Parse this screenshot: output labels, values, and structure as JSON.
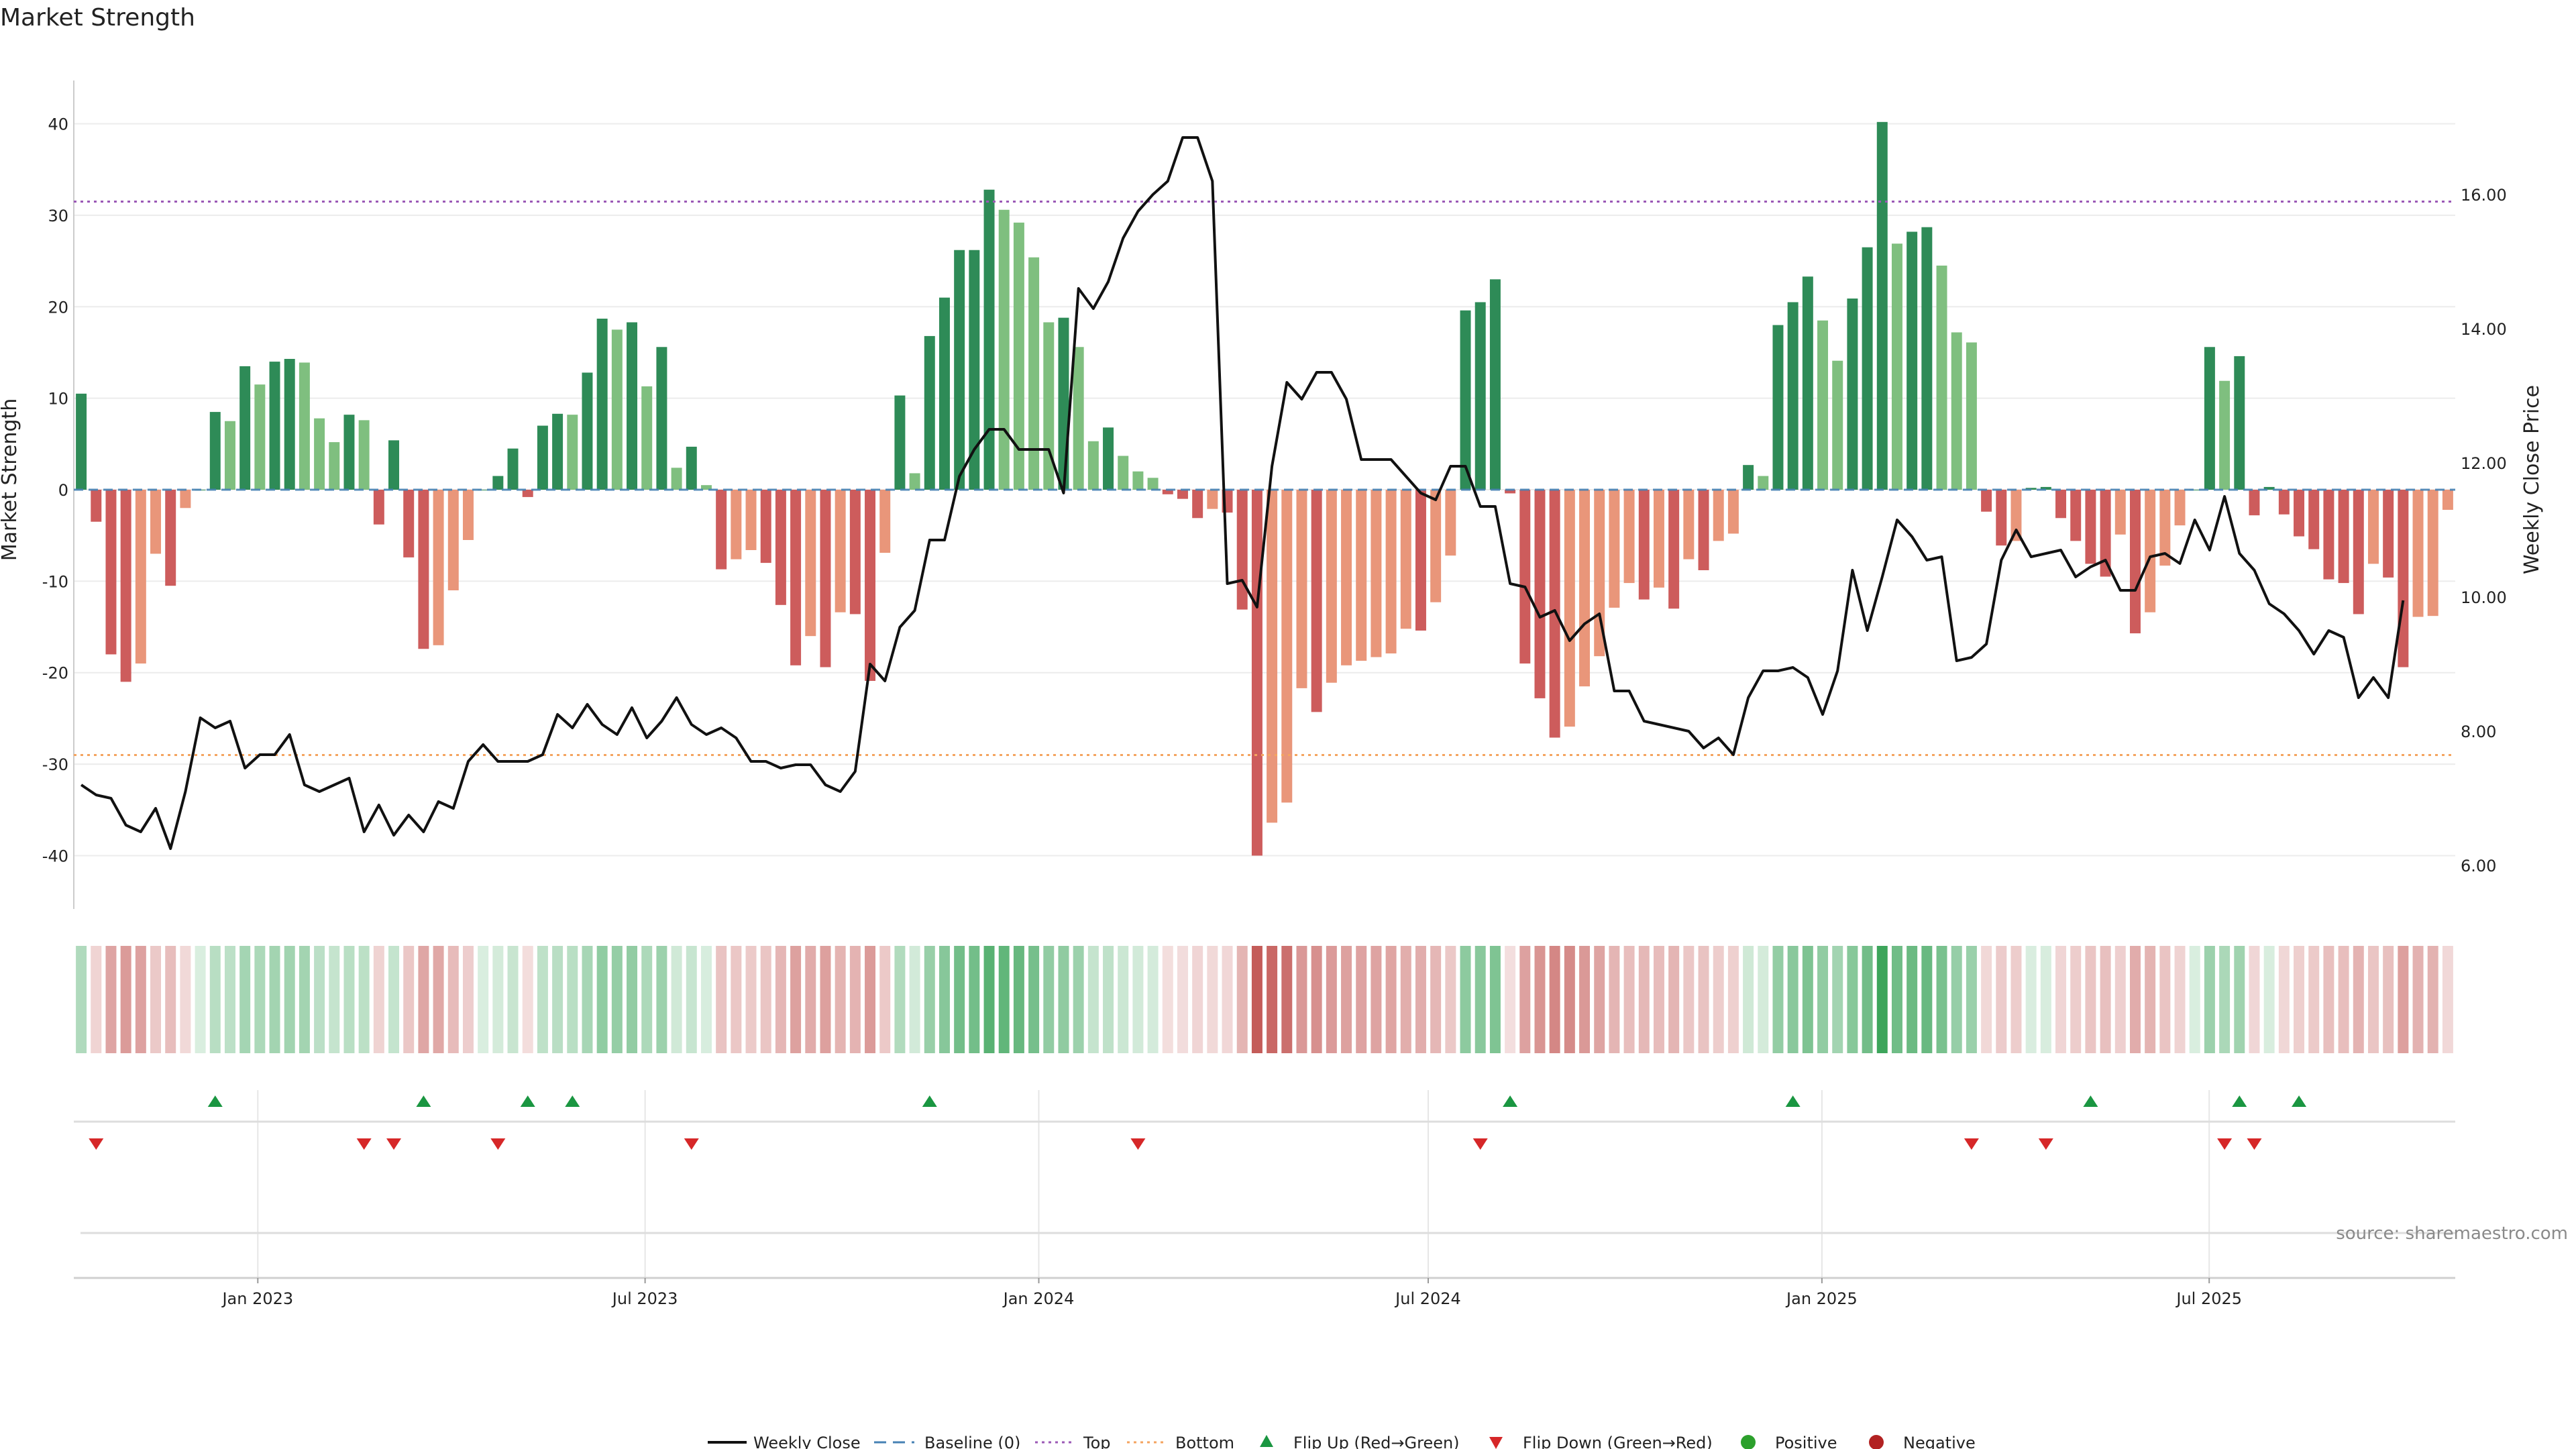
{
  "chart_data": {
    "type": "bar",
    "title": "Market Strength",
    "ylabel": "Market Strength",
    "y2label": "Weekly Close Price",
    "ylim": [
      -44,
      44
    ],
    "y2lim": [
      5.6,
      17.6
    ],
    "yticks": [
      40,
      30,
      20,
      10,
      0,
      -10,
      -20,
      -30,
      -40
    ],
    "y2ticks": [
      "16.00",
      "14.00",
      "12.00",
      "10.00",
      "8.00",
      "6.00"
    ],
    "y2tick_values": [
      16,
      14,
      12,
      10,
      8,
      6
    ],
    "top_level": 31.5,
    "bottom_level": -29,
    "x_start": "2022-10-07",
    "x_end": "2025-10-24",
    "xticks": [
      {
        "date": "2023-01-01",
        "label": "Jan 2023"
      },
      {
        "date": "2023-07-01",
        "label": "Jul 2023"
      },
      {
        "date": "2024-01-01",
        "label": "Jan 2024"
      },
      {
        "date": "2024-07-01",
        "label": "Jul 2024"
      },
      {
        "date": "2025-01-01",
        "label": "Jan 2025"
      },
      {
        "date": "2025-07-01",
        "label": "Jul 2025"
      }
    ],
    "strength": [
      10.5,
      -3.5,
      -18,
      -21,
      -19,
      -7,
      -10.5,
      -2,
      0,
      8.5,
      7.5,
      13.5,
      11.5,
      14,
      14.3,
      13.9,
      7.8,
      5.2,
      8.2,
      7.6,
      -3.8,
      5.4,
      -7.4,
      -17.4,
      -17,
      -11,
      -5.5,
      0,
      1.5,
      4.5,
      -0.8,
      7,
      8.3,
      8.2,
      12.8,
      18.7,
      17.5,
      18.3,
      11.3,
      15.6,
      2.4,
      4.7,
      0.5,
      -8.7,
      -7.6,
      -6.6,
      -8,
      -12.6,
      -19.2,
      -16,
      -19.4,
      -13.4,
      -13.6,
      -20.9,
      -6.9,
      10.3,
      1.8,
      16.8,
      21,
      26.2,
      26.2,
      32.8,
      30.6,
      29.2,
      25.4,
      18.3,
      18.8,
      15.6,
      5.3,
      6.8,
      3.7,
      2,
      1.3,
      -0.5,
      -1,
      -3.1,
      -2.1,
      -2.5,
      -13.1,
      -40,
      -36.4,
      -34.2,
      -21.7,
      -24.3,
      -21.1,
      -19.2,
      -18.7,
      -18.3,
      -17.9,
      -15.2,
      -15.4,
      -12.3,
      -7.2,
      19.6,
      20.5,
      23,
      -0.4,
      -19,
      -22.8,
      -27.1,
      -25.9,
      -21.5,
      -18.2,
      -12.9,
      -10.2,
      -12,
      -10.7,
      -13,
      -7.6,
      -8.8,
      -5.6,
      -4.8,
      2.7,
      1.5,
      18,
      20.5,
      23.3,
      18.5,
      14.1,
      20.9,
      26.5,
      40.2,
      26.9,
      28.2,
      28.7,
      24.5,
      17.2,
      16.1,
      -2.4,
      -6.1,
      -5.6,
      0.2,
      0.3,
      -3.1,
      -5.6,
      -8.1,
      -9.5,
      -4.9,
      -15.7,
      -13.4,
      -8.3,
      -3.9,
      0,
      15.6,
      11.9,
      14.6,
      -2.8,
      0.3,
      -2.7,
      -5.1,
      -6.5,
      -9.8,
      -10.2,
      -13.6,
      -8.1,
      -9.6,
      -19.4,
      -13.9,
      -13.8,
      -2.2
    ],
    "close": [
      7.2,
      7.05,
      7.0,
      6.6,
      6.5,
      6.85,
      6.25,
      7.1,
      8.2,
      8.05,
      8.15,
      7.45,
      7.65,
      7.65,
      7.95,
      7.2,
      7.1,
      7.2,
      7.3,
      6.5,
      6.9,
      6.45,
      6.75,
      6.5,
      6.95,
      6.85,
      7.55,
      7.8,
      7.55,
      7.55,
      7.55,
      7.65,
      8.25,
      8.05,
      8.4,
      8.1,
      7.95,
      8.35,
      7.9,
      8.15,
      8.5,
      8.1,
      7.95,
      8.05,
      7.9,
      7.55,
      7.55,
      7.45,
      7.5,
      7.5,
      7.2,
      7.1,
      7.4,
      9.0,
      8.75,
      9.55,
      9.8,
      10.85,
      10.85,
      11.8,
      12.2,
      12.5,
      12.5,
      12.2,
      12.2,
      12.2,
      11.55,
      14.6,
      14.3,
      14.7,
      15.35,
      15.75,
      16.0,
      16.2,
      16.85,
      16.85,
      16.2,
      10.2,
      10.25,
      9.85,
      11.95,
      13.2,
      12.95,
      13.35,
      13.35,
      12.95,
      12.05,
      12.05,
      12.05,
      11.8,
      11.55,
      11.45,
      11.95,
      11.95,
      11.35,
      11.35,
      10.2,
      10.15,
      9.7,
      9.8,
      9.35,
      9.6,
      9.75,
      8.6,
      8.6,
      8.15,
      8.1,
      8.05,
      8.0,
      7.75,
      7.9,
      7.65,
      8.5,
      8.9,
      8.9,
      8.95,
      8.8,
      8.25,
      8.9,
      10.4,
      9.5,
      10.3,
      11.15,
      10.9,
      10.55,
      10.6,
      9.05,
      9.1,
      9.3,
      10.55,
      11.0,
      10.6,
      10.65,
      10.7,
      10.3,
      10.45,
      10.55,
      10.1,
      10.1,
      10.6,
      10.65,
      10.5,
      11.15,
      10.7,
      11.5,
      10.65,
      10.4,
      9.9,
      9.75,
      9.5,
      9.15,
      9.5,
      9.4,
      8.5,
      8.8,
      8.5,
      9.95
    ],
    "flip_up": [
      9,
      23,
      30,
      33,
      57,
      96,
      115,
      135,
      145,
      149
    ],
    "flip_down": [
      1,
      19,
      21,
      28,
      41,
      71,
      94,
      127,
      132,
      144,
      146
    ],
    "x_label_gap_note": ""
  },
  "legend": {
    "weekly_close": "Weekly Close",
    "baseline": "Baseline (0)",
    "top": "Top",
    "bottom": "Bottom",
    "flip_up": "Flip Up (Red→Green)",
    "flip_down": "Flip Down (Green→Red)",
    "positive": "Positive",
    "negative": "Negative"
  },
  "source": "source: sharemaestro.com",
  "colors": {
    "pos_strong": "#2e8b57",
    "pos_weak": "#7fbf7f",
    "neg_strong": "#cd5c5c",
    "neg_weak": "#e9967a",
    "line": "#111111",
    "baseline": "#4682b4",
    "top": "#9b59b6",
    "bottom": "#f4a460",
    "flip_up": "#1a9641",
    "flip_down": "#d62728",
    "positive_dot": "#2ca02c",
    "negative_dot": "#b22222"
  }
}
